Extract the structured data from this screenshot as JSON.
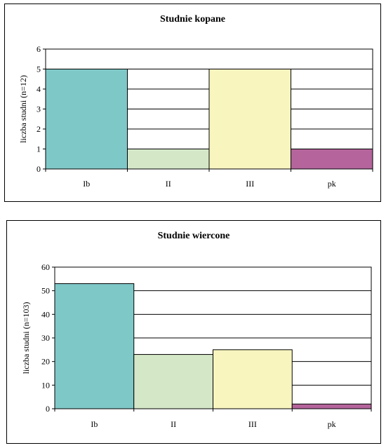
{
  "chart_data": [
    {
      "type": "bar",
      "title": "Studnie kopane",
      "ylabel": "liczba studni (n=12)",
      "xlabel": "",
      "categories": [
        "Ib",
        "II",
        "III",
        "pk"
      ],
      "values": [
        5,
        1,
        5,
        1
      ],
      "colors": [
        "#7fc8c8",
        "#d4e8c8",
        "#f8f5bf",
        "#b5659b"
      ],
      "ylim": [
        0,
        6
      ],
      "yticks": [
        0,
        1,
        2,
        3,
        4,
        5,
        6
      ],
      "grid": true,
      "legend": "none"
    },
    {
      "type": "bar",
      "title": "Studnie wiercone",
      "ylabel": "liczba studni (n=103)",
      "xlabel": "",
      "categories": [
        "Ib",
        "II",
        "III",
        "pk"
      ],
      "values": [
        53,
        23,
        25,
        2
      ],
      "colors": [
        "#7fc8c8",
        "#d4e8c8",
        "#f8f5bf",
        "#b5659b"
      ],
      "ylim": [
        0,
        60
      ],
      "yticks": [
        0,
        10,
        20,
        30,
        40,
        50,
        60
      ],
      "grid": true,
      "legend": "none"
    }
  ]
}
